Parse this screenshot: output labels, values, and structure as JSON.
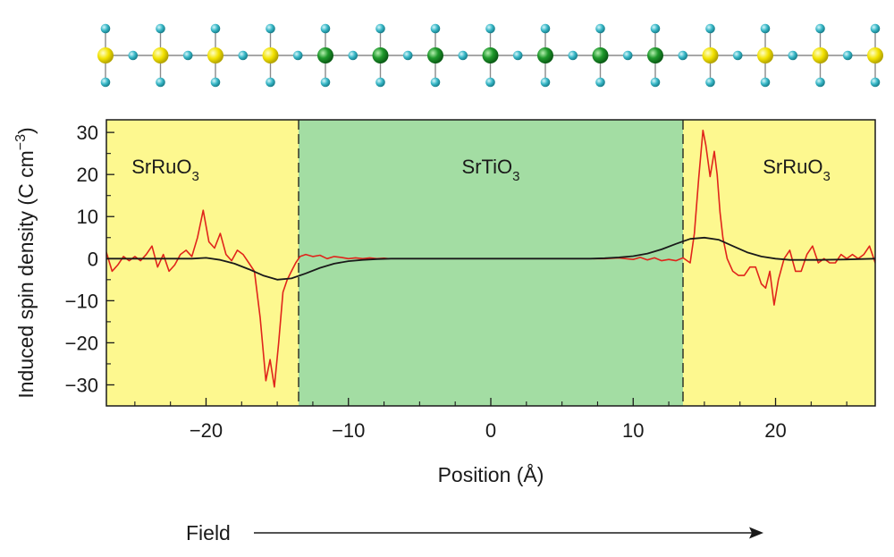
{
  "chart_data": {
    "type": "line",
    "title": "",
    "xlabel": "Position (Å)",
    "ylabel": "Induced spin density (C cm⁻³)",
    "xlim": [
      -27,
      27
    ],
    "ylim": [
      -35,
      33
    ],
    "x_ticks": [
      -20,
      -10,
      0,
      10,
      20
    ],
    "x_minor_ticks": [
      -25,
      -22.5,
      -17.5,
      -15,
      -12.5,
      -7.5,
      -5,
      -2.5,
      2.5,
      5,
      7.5,
      12.5,
      15,
      17.5,
      22.5,
      25
    ],
    "y_ticks": [
      30,
      20,
      10,
      0,
      -10,
      -20,
      -30
    ],
    "x_tick_labels": [
      "−20",
      "−10",
      "0",
      "10",
      "20"
    ],
    "y_tick_labels": [
      "30",
      "20",
      "10",
      "0",
      "−10",
      "−20",
      "−30"
    ],
    "grid": false,
    "regions": [
      {
        "label": "SrRuO",
        "sub": "3",
        "x_start": -27,
        "x_end": -13.5,
        "color": "#fdf88f"
      },
      {
        "label": "SrTiO",
        "sub": "3",
        "x_start": -13.5,
        "x_end": 13.5,
        "color": "#a3dda3"
      },
      {
        "label": "SrRuO",
        "sub": "3",
        "x_start": 13.5,
        "x_end": 27,
        "color": "#fdf88f"
      }
    ],
    "interfaces": [
      -13.5,
      13.5
    ],
    "series": [
      {
        "color": "#e0241b",
        "x": [
          -27,
          -26.6,
          -26.2,
          -25.8,
          -25.4,
          -25,
          -24.6,
          -24.2,
          -23.8,
          -23.4,
          -23,
          -22.6,
          -22.2,
          -21.8,
          -21.4,
          -21,
          -20.6,
          -20.2,
          -19.8,
          -19.4,
          -19,
          -18.6,
          -18.2,
          -17.8,
          -17.4,
          -17,
          -16.6,
          -16.2,
          -15.8,
          -15.5,
          -15.2,
          -14.9,
          -14.6,
          -14.3,
          -14,
          -13.7,
          -13.4,
          -13,
          -12.5,
          -12,
          -11.5,
          -11,
          -10.5,
          -10,
          -9.5,
          -9,
          -8.5,
          -8,
          -7.5,
          -7.2
        ],
        "y": [
          1.5,
          -3,
          -1.5,
          0.5,
          -0.5,
          0.5,
          -0.5,
          1,
          3,
          -2,
          1,
          -3,
          -1.5,
          1,
          2,
          0.5,
          5,
          11.5,
          4,
          2.5,
          6,
          1,
          -0.5,
          2,
          1,
          -1,
          -3,
          -14,
          -29,
          -24,
          -30.5,
          -20,
          -8,
          -5,
          -3,
          -1,
          0.5,
          1,
          0.5,
          0.8,
          0,
          0.5,
          0.3,
          0,
          0.2,
          0,
          0.2,
          0,
          0.1,
          0
        ]
      },
      {
        "color": "#e0241b",
        "x": [
          7.2,
          8,
          9,
          10,
          10.5,
          11,
          11.5,
          12,
          12.5,
          13,
          13.5,
          14,
          14.3,
          14.6,
          14.9,
          15.1,
          15.4,
          15.7,
          15.9,
          16.1,
          16.3,
          16.6,
          17,
          17.4,
          17.8,
          18.2,
          18.6,
          19,
          19.3,
          19.6,
          19.9,
          20.2,
          20.6,
          21,
          21.4,
          21.8,
          22.2,
          22.6,
          23,
          23.4,
          23.8,
          24.2,
          24.6,
          25,
          25.4,
          25.8,
          26.2,
          26.6,
          27
        ],
        "y": [
          0,
          0,
          0.2,
          -0.2,
          0.3,
          -0.3,
          0.2,
          -0.5,
          -0.2,
          -0.5,
          0.2,
          -1,
          6,
          19,
          30.5,
          27,
          19.5,
          25.5,
          20,
          11,
          5,
          0,
          -3,
          -4,
          -4,
          -2,
          -2,
          -6,
          -7,
          -3,
          -11,
          -5,
          0,
          2,
          -3,
          -3,
          1,
          3,
          -1,
          0,
          -1,
          -1,
          1,
          0,
          1,
          0,
          1,
          3,
          -1
        ]
      },
      {
        "color": "#1a1a1a",
        "x": [
          -27,
          -25,
          -23,
          -21,
          -20,
          -19,
          -18,
          -17,
          -16,
          -15,
          -14,
          -13,
          -12,
          -11,
          -10,
          -9,
          -8,
          -7,
          -6,
          -4,
          -2,
          0,
          2,
          4,
          6,
          7,
          8,
          9,
          10,
          11,
          12,
          13,
          14,
          15,
          16,
          17,
          18,
          19,
          20,
          21,
          23,
          25,
          27
        ],
        "y": [
          0,
          0,
          0,
          0,
          0.2,
          -0.3,
          -1.2,
          -2.5,
          -4,
          -5,
          -4.7,
          -3.5,
          -2.2,
          -1.2,
          -0.6,
          -0.3,
          -0.1,
          0,
          0,
          0,
          0,
          0,
          0,
          0,
          0,
          0,
          0.1,
          0.3,
          0.6,
          1.2,
          2.2,
          3.5,
          4.7,
          5,
          4.5,
          3,
          1.5,
          0.5,
          0,
          -0.3,
          -0.3,
          -0.2,
          0
        ]
      }
    ]
  },
  "lattice": {
    "atom_types": [
      {
        "element": "Ru",
        "color": "#f0e100"
      },
      {
        "element": "Ti",
        "color": "#1f9a2c"
      },
      {
        "element": "O",
        "color": "#38b8c8"
      }
    ],
    "chain": [
      "Ru",
      "Ru",
      "Ru",
      "Ru",
      "Ti",
      "Ti",
      "Ti",
      "Ti",
      "Ti",
      "Ti",
      "Ti",
      "Ru",
      "Ru",
      "Ru",
      "Ru"
    ]
  },
  "field": {
    "label": "Field",
    "direction": "right"
  }
}
